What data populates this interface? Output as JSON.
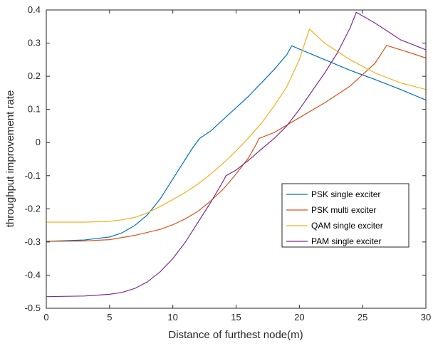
{
  "chart_data": {
    "type": "line",
    "title": "",
    "xlabel": "Distance of furthest node(m)",
    "ylabel": "throughput improvement rate",
    "xlim": [
      0,
      30
    ],
    "ylim": [
      -0.5,
      0.4
    ],
    "xticks": [
      "0",
      "5",
      "10",
      "15",
      "20",
      "25",
      "30"
    ],
    "yticks": [
      "-0.5",
      "-0.4",
      "-0.3",
      "-0.2",
      "-0.1",
      "0",
      "0.1",
      "0.2",
      "0.3",
      "0.4"
    ],
    "grid": false,
    "legend_position": "middle-right",
    "series": [
      {
        "name": "PSK single exciter",
        "color": "#0072BD",
        "points": [
          [
            0,
            -0.298
          ],
          [
            3,
            -0.294
          ],
          [
            5,
            -0.285
          ],
          [
            6,
            -0.272
          ],
          [
            7,
            -0.25
          ],
          [
            8,
            -0.218
          ],
          [
            9,
            -0.17
          ],
          [
            10,
            -0.11
          ],
          [
            11,
            -0.05
          ],
          [
            11.5,
            -0.02
          ],
          [
            12.1,
            0.012
          ],
          [
            13,
            0.035
          ],
          [
            14,
            0.07
          ],
          [
            15,
            0.105
          ],
          [
            16,
            0.14
          ],
          [
            17,
            0.18
          ],
          [
            18,
            0.22
          ],
          [
            19,
            0.265
          ],
          [
            19.4,
            0.292
          ],
          [
            20,
            0.282
          ],
          [
            22,
            0.25
          ],
          [
            24,
            0.218
          ],
          [
            26,
            0.19
          ],
          [
            28,
            0.16
          ],
          [
            30,
            0.128
          ]
        ]
      },
      {
        "name": "PSK multi exciter",
        "color": "#D95319",
        "points": [
          [
            0,
            -0.298
          ],
          [
            3,
            -0.297
          ],
          [
            5,
            -0.293
          ],
          [
            7,
            -0.28
          ],
          [
            9,
            -0.262
          ],
          [
            10,
            -0.248
          ],
          [
            11,
            -0.23
          ],
          [
            12,
            -0.207
          ],
          [
            13,
            -0.176
          ],
          [
            14,
            -0.14
          ],
          [
            15,
            -0.095
          ],
          [
            16,
            -0.045
          ],
          [
            16.6,
            -0.005
          ],
          [
            16.8,
            0.012
          ],
          [
            18,
            0.03
          ],
          [
            20,
            0.075
          ],
          [
            22,
            0.12
          ],
          [
            24,
            0.17
          ],
          [
            26,
            0.24
          ],
          [
            26.9,
            0.293
          ],
          [
            28,
            0.28
          ],
          [
            29,
            0.268
          ],
          [
            30,
            0.255
          ]
        ]
      },
      {
        "name": "QAM single exciter",
        "color": "#EDB120",
        "points": [
          [
            0,
            -0.24
          ],
          [
            3,
            -0.24
          ],
          [
            5,
            -0.238
          ],
          [
            6,
            -0.233
          ],
          [
            7,
            -0.226
          ],
          [
            8,
            -0.212
          ],
          [
            9,
            -0.193
          ],
          [
            10,
            -0.172
          ],
          [
            11,
            -0.15
          ],
          [
            12,
            -0.125
          ],
          [
            13,
            -0.095
          ],
          [
            14,
            -0.062
          ],
          [
            15,
            -0.025
          ],
          [
            16,
            0.015
          ],
          [
            17,
            0.058
          ],
          [
            18,
            0.11
          ],
          [
            19,
            0.168
          ],
          [
            20,
            0.25
          ],
          [
            20.8,
            0.342
          ],
          [
            22,
            0.3
          ],
          [
            24,
            0.25
          ],
          [
            26,
            0.21
          ],
          [
            28,
            0.18
          ],
          [
            30,
            0.16
          ]
        ]
      },
      {
        "name": "PAM single exciter",
        "color": "#7E2F8E",
        "points": [
          [
            0,
            -0.465
          ],
          [
            3,
            -0.463
          ],
          [
            5,
            -0.458
          ],
          [
            6,
            -0.452
          ],
          [
            7,
            -0.44
          ],
          [
            8,
            -0.42
          ],
          [
            9,
            -0.39
          ],
          [
            10,
            -0.35
          ],
          [
            11,
            -0.3
          ],
          [
            12,
            -0.24
          ],
          [
            13,
            -0.18
          ],
          [
            14,
            -0.115
          ],
          [
            14.2,
            -0.1
          ],
          [
            15,
            -0.083
          ],
          [
            16,
            -0.053
          ],
          [
            17,
            -0.02
          ],
          [
            18,
            0.012
          ],
          [
            19,
            0.05
          ],
          [
            20,
            0.1
          ],
          [
            21,
            0.155
          ],
          [
            22,
            0.21
          ],
          [
            23,
            0.27
          ],
          [
            24,
            0.345
          ],
          [
            24.5,
            0.393
          ],
          [
            26,
            0.36
          ],
          [
            28,
            0.31
          ],
          [
            30,
            0.28
          ]
        ]
      }
    ]
  }
}
